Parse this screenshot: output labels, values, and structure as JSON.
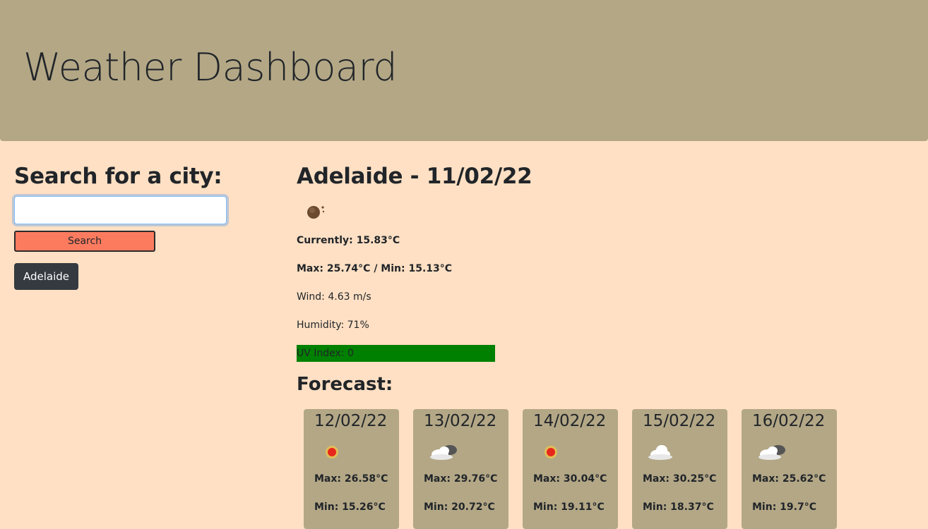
{
  "header": {
    "title": "Weather Dashboard"
  },
  "search": {
    "heading": "Search for a city:",
    "input_value": "",
    "button_label": "Search",
    "history": [
      "Adelaide"
    ]
  },
  "current": {
    "title": "Adelaide - 11/02/22",
    "icon": "night-cloud-icon",
    "currently": "Currently: 15.83°C",
    "maxmin": "Max: 25.74°C / Min: 15.13°C",
    "wind": "Wind: 4.63 m/s",
    "humidity": "Humidity: 71%",
    "uv": "UV Index: 0",
    "uv_color": "#008000"
  },
  "forecast": {
    "title": "Forecast:",
    "days": [
      {
        "date": "12/02/22",
        "icon": "sun-icon",
        "max": "Max: 26.58°C",
        "min": "Min: 15.26°C"
      },
      {
        "date": "13/02/22",
        "icon": "cloudy-icon",
        "max": "Max: 29.76°C",
        "min": "Min: 20.72°C"
      },
      {
        "date": "14/02/22",
        "icon": "sun-icon",
        "max": "Max: 30.04°C",
        "min": "Min: 19.11°C"
      },
      {
        "date": "15/02/22",
        "icon": "cloud-icon",
        "max": "Max: 30.25°C",
        "min": "Min: 18.37°C"
      },
      {
        "date": "16/02/22",
        "icon": "cloudy-icon",
        "max": "Max: 25.62°C",
        "min": "Min: 19.7°C"
      }
    ]
  },
  "colors": {
    "background": "#ffe0c4",
    "header": "#b3a786",
    "search_button": "#fc7b5f",
    "history_button": "#343a40"
  }
}
